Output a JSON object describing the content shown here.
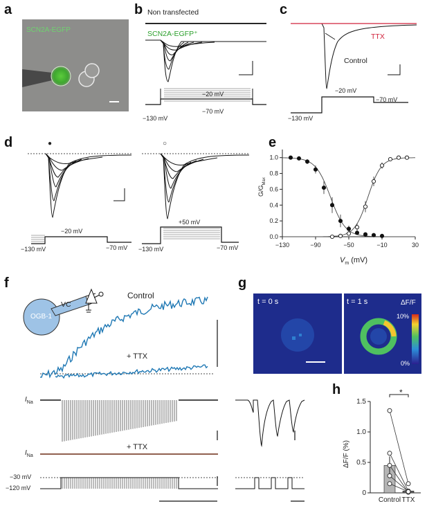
{
  "panels": {
    "a": {
      "letter": "a",
      "label": "SCN2A-EGFP",
      "label_color": "#6fd26f"
    },
    "b": {
      "letter": "b",
      "label_top": "Non transfected",
      "label_bottom": "SCN2A-EGFP⁺",
      "label_bottom_color": "#2ca02c",
      "protocol": {
        "high": "−20 mV",
        "low": "−70 mV",
        "hold": "−130 mV"
      }
    },
    "c": {
      "letter": "c",
      "label_ttx": "TTX",
      "label_control": "Control",
      "ttx_color": "#d0213a",
      "protocol": {
        "step": "−20 mV",
        "end": "−70 mV",
        "hold": "−130 mV"
      }
    },
    "d": {
      "letter": "d",
      "marker_left": "●",
      "marker_right": "○",
      "left_protocol": {
        "step": "−20 mV",
        "end": "−70 mV",
        "hold": "−130 mV"
      },
      "right_protocol": {
        "step": "+50 mV",
        "end": "−70 mV",
        "hold": "−130 mV"
      }
    },
    "e": {
      "letter": "e"
    },
    "f": {
      "letter": "f",
      "vc": "VC",
      "cell": "OGB-1",
      "control": "Control",
      "ttx": "+ TTX",
      "ina": "I",
      "ina_sub": "Na",
      "ttx2": "+ TTX",
      "v_high": "−30 mV",
      "v_low": "−120 mV",
      "trace_color": "#1f78b4"
    },
    "g": {
      "letter": "g",
      "t0": "t = 0 s",
      "t1": "t = 1 s",
      "cbar_title": "ΔF/F",
      "cbar_max": "10%",
      "cbar_min": "0%"
    },
    "h": {
      "letter": "h",
      "star": "*"
    }
  },
  "chart_data": [
    {
      "type": "scatter",
      "panel": "e",
      "xlabel": "V",
      "xlabel_sub": "m",
      "xlabel_unit": " (mV)",
      "ylabel": "G/G",
      "ylabel_sub": "Max",
      "xlim": [
        -130,
        30
      ],
      "ylim": [
        0,
        1.05
      ],
      "xticks": [
        -130,
        -90,
        -50,
        -10,
        30
      ],
      "xtick_labels": [
        "−130",
        "−90",
        "−50",
        "−10",
        "30"
      ],
      "yticks": [
        0.0,
        0.2,
        0.4,
        0.6,
        0.8,
        1.0
      ],
      "ytick_labels": [
        "0.0",
        "0.2",
        "0.4",
        "0.6",
        "0.8",
        "1.0"
      ],
      "series": [
        {
          "marker": "filled",
          "x": [
            -120,
            -110,
            -100,
            -90,
            -80,
            -70,
            -60,
            -50,
            -40,
            -30,
            -20,
            -10
          ],
          "y": [
            1.0,
            0.99,
            0.95,
            0.85,
            0.62,
            0.4,
            0.2,
            0.1,
            0.05,
            0.03,
            0.02,
            0.01
          ],
          "err": [
            0.0,
            0.02,
            0.03,
            0.05,
            0.08,
            0.1,
            0.08,
            0.04,
            0.02,
            0.01,
            0.01,
            0.0
          ]
        },
        {
          "marker": "open",
          "x": [
            -70,
            -60,
            -50,
            -40,
            -30,
            -20,
            -10,
            0,
            10,
            20
          ],
          "y": [
            0.0,
            0.01,
            0.04,
            0.12,
            0.38,
            0.7,
            0.9,
            0.98,
            1.0,
            1.0
          ],
          "err": [
            0.0,
            0.0,
            0.02,
            0.05,
            0.07,
            0.06,
            0.04,
            0.02,
            0.02,
            0.0
          ]
        }
      ]
    },
    {
      "type": "bar",
      "panel": "h",
      "categories": [
        "Control",
        "TTX"
      ],
      "values": [
        0.45,
        0.03
      ],
      "ylabel": "ΔF/F (%)",
      "ylim": [
        0,
        1.5
      ],
      "yticks": [
        0,
        0.5,
        1.0,
        1.5
      ],
      "ytick_labels": [
        "0",
        "0.5",
        "1.0",
        "1.5"
      ],
      "paired": {
        "control": [
          1.35,
          0.65,
          0.45,
          0.28,
          0.15
        ],
        "ttx": [
          0.15,
          0.03,
          0.01,
          0.02,
          0.02
        ]
      }
    }
  ]
}
